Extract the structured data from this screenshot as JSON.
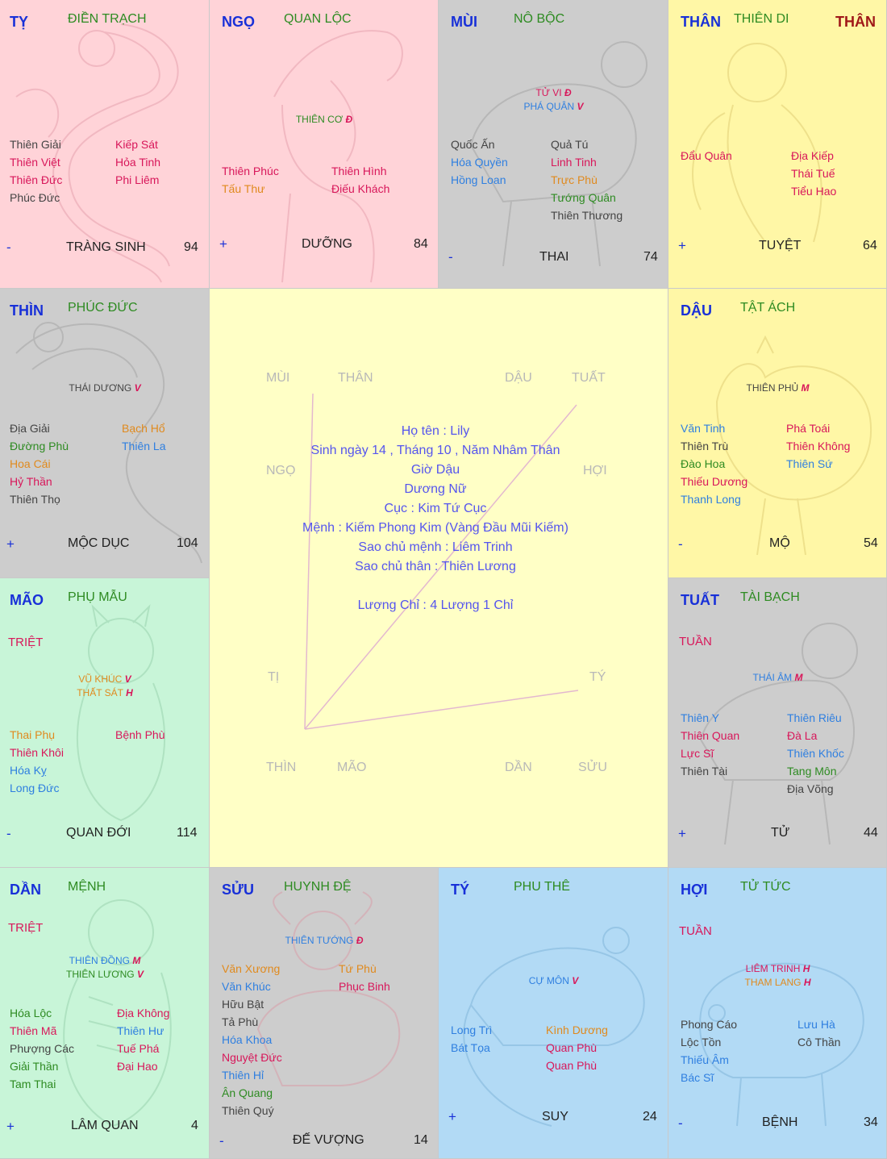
{
  "cells": [
    {
      "id": "ty-snake",
      "branch": "TỴ",
      "palace": "ĐIỀN TRẠCH",
      "body_mark": "",
      "center_stars": [],
      "left_stars": [
        {
          "t": "Thiên Giải",
          "c": "#444444"
        },
        {
          "t": "Thiên Việt",
          "c": "#d8175a"
        },
        {
          "t": "Thiên Đức",
          "c": "#d8175a"
        },
        {
          "t": "Phúc Đức",
          "c": "#444444"
        }
      ],
      "right_stars": [
        {
          "t": "Kiếp Sát",
          "c": "#d8175a"
        },
        {
          "t": "Hỏa Tinh",
          "c": "#d8175a"
        },
        {
          "t": "Phi Liêm",
          "c": "#d8175a"
        }
      ],
      "tag": "",
      "sign": "-",
      "life_stage": "TRÀNG SINH",
      "age": "94"
    },
    {
      "id": "ngo-horse",
      "branch": "NGỌ",
      "palace": "QUAN LỘC",
      "body_mark": "",
      "center_stars": [
        {
          "name": "THIÊN CƠ",
          "chip": "Đ",
          "c": "#2e8b22"
        }
      ],
      "left_stars": [
        {
          "t": "Thiên Phúc",
          "c": "#d8175a"
        },
        {
          "t": "Tấu Thư",
          "c": "#e08a1e"
        }
      ],
      "right_stars": [
        {
          "t": "Thiên Hình",
          "c": "#d8175a"
        },
        {
          "t": "Điếu Khách",
          "c": "#d8175a"
        }
      ],
      "tag": "",
      "sign": "+",
      "life_stage": "DƯỠNG",
      "age": "84"
    },
    {
      "id": "mui-goat",
      "branch": "MÙI",
      "palace": "NÔ BỘC",
      "body_mark": "",
      "center_stars": [
        {
          "name": "TỬ VI",
          "chip": "Đ",
          "c": "#d8175a"
        },
        {
          "name": "PHÁ QUÂN",
          "chip": "V",
          "c": "#2f7fe0"
        }
      ],
      "left_stars": [
        {
          "t": "Quốc Ấn",
          "c": "#444444"
        },
        {
          "t": "Hóa Quyền",
          "c": "#2f7fe0"
        },
        {
          "t": "Hồng Loan",
          "c": "#2f7fe0"
        }
      ],
      "right_stars": [
        {
          "t": "Quả Tú",
          "c": "#444444"
        },
        {
          "t": "Linh Tinh",
          "c": "#d8175a"
        },
        {
          "t": "Trực Phù",
          "c": "#e08a1e"
        },
        {
          "t": "Tướng Quân",
          "c": "#2e8b22"
        },
        {
          "t": "Thiên Thương",
          "c": "#444444"
        }
      ],
      "tag": "",
      "sign": "-",
      "life_stage": "THAI",
      "age": "74"
    },
    {
      "id": "than-monkey",
      "branch": "THÂN",
      "palace": "THIÊN DI",
      "body_mark": "THÂN",
      "center_stars": [],
      "left_stars": [
        {
          "t": "Đẩu Quân",
          "c": "#d8175a"
        }
      ],
      "right_stars": [
        {
          "t": "Địa Kiếp",
          "c": "#d8175a"
        },
        {
          "t": "Thái Tuế",
          "c": "#d8175a"
        },
        {
          "t": "Tiểu Hao",
          "c": "#d8175a"
        }
      ],
      "tag": "",
      "sign": "+",
      "life_stage": "TUYỆT",
      "age": "64"
    },
    {
      "id": "thin-dragon",
      "branch": "THÌN",
      "palace": "PHÚC ĐỨC",
      "body_mark": "",
      "center_stars": [
        {
          "name": "THÁI DƯƠNG",
          "chip": "V",
          "c": "#444444"
        }
      ],
      "left_stars": [
        {
          "t": "Địa Giải",
          "c": "#444444"
        },
        {
          "t": "Đường Phù",
          "c": "#2e8b22"
        },
        {
          "t": "Hoa Cái",
          "c": "#e08a1e"
        },
        {
          "t": "Hỷ Thần",
          "c": "#d8175a"
        },
        {
          "t": "Thiên Thọ",
          "c": "#444444"
        }
      ],
      "right_stars": [
        {
          "t": "Bạch Hổ",
          "c": "#e08a1e"
        },
        {
          "t": "Thiên La",
          "c": "#2f7fe0"
        }
      ],
      "tag": "",
      "sign": "+",
      "life_stage": "MỘC DỤC",
      "age": "104"
    },
    {
      "id": "dau-rooster",
      "branch": "DẬU",
      "palace": "TẬT ÁCH",
      "body_mark": "",
      "center_stars": [
        {
          "name": "THIÊN PHỦ",
          "chip": "M",
          "c": "#444444"
        }
      ],
      "left_stars": [
        {
          "t": "Văn Tinh",
          "c": "#2f7fe0"
        },
        {
          "t": "Thiên Trù",
          "c": "#444444"
        },
        {
          "t": "Đào Hoa",
          "c": "#2e8b22"
        },
        {
          "t": "Thiếu Dương",
          "c": "#d8175a"
        },
        {
          "t": "Thanh Long",
          "c": "#2f7fe0"
        }
      ],
      "right_stars": [
        {
          "t": "Phá Toái",
          "c": "#d8175a"
        },
        {
          "t": "Thiên Không",
          "c": "#d8175a"
        },
        {
          "t": "Thiên Sứ",
          "c": "#2f7fe0"
        }
      ],
      "tag": "",
      "sign": "-",
      "life_stage": "MỘ",
      "age": "54"
    },
    {
      "id": "mao-cat",
      "branch": "MÃO",
      "palace": "PHỤ MẪU",
      "body_mark": "",
      "center_stars": [
        {
          "name": "VŨ KHÚC",
          "chip": "V",
          "c": "#e08a1e"
        },
        {
          "name": "THẤT SÁT",
          "chip": "H",
          "c": "#e08a1e"
        }
      ],
      "left_stars": [
        {
          "t": "Thai Phụ",
          "c": "#e08a1e"
        },
        {
          "t": "Thiên Khôi",
          "c": "#d8175a"
        },
        {
          "t": "Hóa Kỵ",
          "c": "#2f7fe0"
        },
        {
          "t": "Long Đức",
          "c": "#2f7fe0"
        }
      ],
      "right_stars": [
        {
          "t": "Bệnh Phù",
          "c": "#d8175a"
        }
      ],
      "tag": "TRIỆT",
      "sign": "-",
      "life_stage": "QUAN ĐỚI",
      "age": "114"
    },
    {
      "id": "tuat-dog",
      "branch": "TUẤT",
      "palace": "TÀI BẠCH",
      "body_mark": "",
      "center_stars": [
        {
          "name": "THÁI ÂM",
          "chip": "M",
          "c": "#2f7fe0"
        }
      ],
      "left_stars": [
        {
          "t": "Thiên Y",
          "c": "#2f7fe0"
        },
        {
          "t": "Thiên Quan",
          "c": "#d8175a"
        },
        {
          "t": "Lực Sĩ",
          "c": "#d8175a"
        },
        {
          "t": "Thiên Tài",
          "c": "#444444"
        }
      ],
      "right_stars": [
        {
          "t": "Thiên Riêu",
          "c": "#2f7fe0"
        },
        {
          "t": "Đà La",
          "c": "#d8175a"
        },
        {
          "t": "Thiên Khốc",
          "c": "#2f7fe0"
        },
        {
          "t": "Tang Môn",
          "c": "#2e8b22"
        },
        {
          "t": "Địa Võng",
          "c": "#444444"
        }
      ],
      "tag": "TUẦN",
      "sign": "+",
      "life_stage": "TỬ",
      "age": "44"
    },
    {
      "id": "dan-tiger",
      "branch": "DẦN",
      "palace": "MỆNH",
      "body_mark": "",
      "center_stars": [
        {
          "name": "THIÊN ĐỒNG",
          "chip": "M",
          "c": "#2f7fe0"
        },
        {
          "name": "THIÊN LƯƠNG",
          "chip": "V",
          "c": "#2e8b22"
        }
      ],
      "left_stars": [
        {
          "t": "Hóa Lộc",
          "c": "#2e8b22"
        },
        {
          "t": "Thiên Mã",
          "c": "#d8175a"
        },
        {
          "t": "Phượng Các",
          "c": "#444444"
        },
        {
          "t": "Giải Thần",
          "c": "#2e8b22"
        },
        {
          "t": "Tam Thai",
          "c": "#2e8b22"
        }
      ],
      "right_stars": [
        {
          "t": "Địa Không",
          "c": "#d8175a"
        },
        {
          "t": "Thiên Hư",
          "c": "#2f7fe0"
        },
        {
          "t": "Tuế Phá",
          "c": "#d8175a"
        },
        {
          "t": "Đại Hao",
          "c": "#d8175a"
        }
      ],
      "tag": "TRIỆT",
      "sign": "+",
      "life_stage": "LÂM QUAN",
      "age": "4"
    },
    {
      "id": "suu-ox",
      "branch": "SỬU",
      "palace": "HUYNH ĐỆ",
      "body_mark": "",
      "center_stars": [
        {
          "name": "THIÊN TƯỚNG",
          "chip": "Đ",
          "c": "#2f7fe0"
        }
      ],
      "left_stars": [
        {
          "t": "Văn Xương",
          "c": "#e08a1e"
        },
        {
          "t": "Văn Khúc",
          "c": "#2f7fe0"
        },
        {
          "t": "Hữu Bật",
          "c": "#444444"
        },
        {
          "t": "Tả Phù",
          "c": "#444444"
        },
        {
          "t": "Hóa Khoa",
          "c": "#2f7fe0"
        },
        {
          "t": "Nguyệt Đức",
          "c": "#d8175a"
        },
        {
          "t": "Thiên Hỉ",
          "c": "#2f7fe0"
        },
        {
          "t": "Ân Quang",
          "c": "#2e8b22"
        },
        {
          "t": "Thiên Quý",
          "c": "#444444"
        }
      ],
      "right_stars": [
        {
          "t": "Tứ Phù",
          "c": "#e08a1e"
        },
        {
          "t": "Phục Binh",
          "c": "#d8175a"
        }
      ],
      "tag": "",
      "sign": "-",
      "life_stage": "ĐẾ VƯỢNG",
      "age": "14"
    },
    {
      "id": "ty-rat",
      "branch": "TÝ",
      "palace": "PHU THÊ",
      "body_mark": "",
      "center_stars": [
        {
          "name": "CỰ MÔN",
          "chip": "V",
          "c": "#2f7fe0"
        }
      ],
      "left_stars": [
        {
          "t": "Long Trì",
          "c": "#2f7fe0"
        },
        {
          "t": "Bát Tọa",
          "c": "#2f7fe0"
        }
      ],
      "right_stars": [
        {
          "t": "Kình Dương",
          "c": "#e08a1e"
        },
        {
          "t": "Quan Phù",
          "c": "#d8175a"
        },
        {
          "t": "Quan Phù",
          "c": "#d8175a"
        }
      ],
      "tag": "",
      "sign": "+",
      "life_stage": "SUY",
      "age": "24"
    },
    {
      "id": "hoi-pig",
      "branch": "HỢI",
      "palace": "TỬ TỨC",
      "body_mark": "",
      "center_stars": [
        {
          "name": "LIÊM TRINH",
          "chip": "H",
          "c": "#d8175a"
        },
        {
          "name": "THAM LANG",
          "chip": "H",
          "c": "#e08a1e"
        }
      ],
      "left_stars": [
        {
          "t": "Phong Cáo",
          "c": "#444444"
        },
        {
          "t": "Lộc Tồn",
          "c": "#444444"
        },
        {
          "t": "Thiếu Âm",
          "c": "#2f7fe0"
        },
        {
          "t": "Bác Sĩ",
          "c": "#2f7fe0"
        }
      ],
      "right_stars": [
        {
          "t": "Lưu Hà",
          "c": "#2f7fe0"
        },
        {
          "t": "Cô Thần",
          "c": "#444444"
        }
      ],
      "tag": "TUẦN",
      "sign": "-",
      "life_stage": "BỆNH",
      "age": "34"
    }
  ],
  "center": {
    "directions": {
      "top_1": "MÙI",
      "top_2": "THÂN",
      "top_3": "DẬU",
      "top_4": "TUẤT",
      "left_1": "NGỌ",
      "left_2": "TỊ",
      "right_1": "HỢI",
      "right_2": "TÝ",
      "bottom_1": "THÌN",
      "bottom_2": "MÃO",
      "bottom_3": "DẦN",
      "bottom_4": "SỬU"
    },
    "info": [
      "Họ tên : Lily",
      "Sinh ngày 14 , Tháng 10 , Năm Nhâm Thân",
      "Giờ Dậu",
      "Dương Nữ",
      "Cục : Kim Tứ Cục",
      "Mệnh : Kiếm Phong Kim (Vàng Đầu Mũi Kiếm)",
      "Sao chủ mệnh : Liêm Trinh",
      "Sao chủ thân : Thiên Lương",
      "",
      "Lượng Chỉ : 4 Lượng 1 Chỉ"
    ]
  },
  "colors": {
    "branch": "#1830d8",
    "palace": "#2e8b22",
    "body_mark": "#a01818",
    "tag": "#d8175a",
    "info_text": "#5555ee",
    "dim_text": "#b8b8b8",
    "pink_cell": "#ffd3d8",
    "gray_cell": "#cdcdcd",
    "yellow_cell": "#fff7a6",
    "green_cell": "#c8f5d8",
    "blue_cell": "#b2daf5",
    "center_bg": "#ffffc6"
  }
}
